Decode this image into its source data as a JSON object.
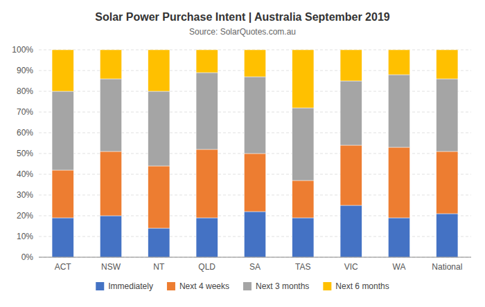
{
  "chart_data": {
    "type": "bar",
    "title": "Solar Power Purchase Intent | Australia September 2019",
    "subtitle": "Source: SolarQuotes.com.au",
    "categories": [
      "ACT",
      "NSW",
      "NT",
      "QLD",
      "SA",
      "TAS",
      "VIC",
      "WA",
      "National"
    ],
    "series": [
      {
        "name": "Immediately",
        "color": "#4472C4",
        "values": [
          19,
          20,
          14,
          19,
          22,
          19,
          25,
          19,
          21
        ]
      },
      {
        "name": "Next 4 weeks",
        "color": "#ED7D31",
        "values": [
          23,
          31,
          30,
          33,
          28,
          18,
          29,
          34,
          30
        ]
      },
      {
        "name": "Next 3 months",
        "color": "#A5A5A5",
        "values": [
          38,
          35,
          36,
          37,
          37,
          35,
          31,
          35,
          35
        ]
      },
      {
        "name": "Next 6 months",
        "color": "#FFC000",
        "values": [
          20,
          14,
          20,
          11,
          13,
          28,
          15,
          12,
          14
        ]
      }
    ],
    "ylim": [
      0,
      100
    ],
    "yticks": [
      {
        "value": 0,
        "label": "0%"
      },
      {
        "value": 10,
        "label": "10%"
      },
      {
        "value": 20,
        "label": "20%"
      },
      {
        "value": 30,
        "label": "30%"
      },
      {
        "value": 40,
        "label": "40%"
      },
      {
        "value": 50,
        "label": "50%"
      },
      {
        "value": 60,
        "label": "60%"
      },
      {
        "value": 70,
        "label": "70%"
      },
      {
        "value": 80,
        "label": "80%"
      },
      {
        "value": 90,
        "label": "90%"
      },
      {
        "value": 100,
        "label": "100%"
      }
    ],
    "grid": true,
    "stacked": true,
    "legend": "bottom"
  }
}
